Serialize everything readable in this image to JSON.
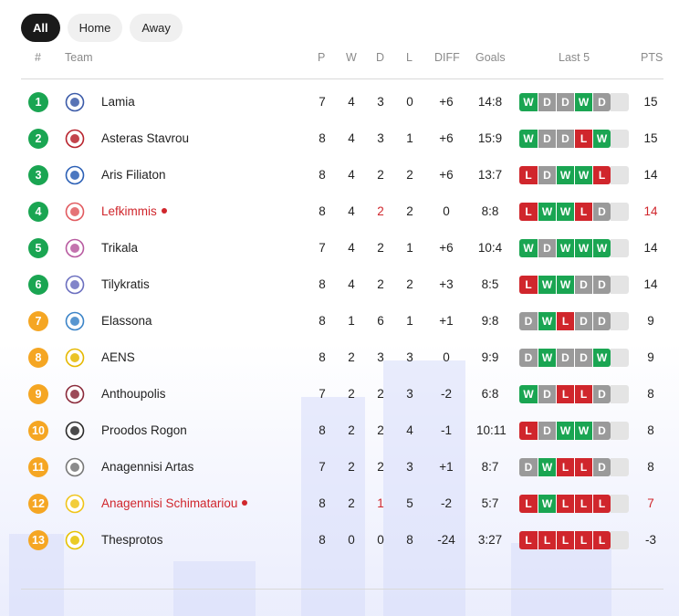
{
  "tabs": [
    {
      "label": "All",
      "active": true
    },
    {
      "label": "Home",
      "active": false
    },
    {
      "label": "Away",
      "active": false
    }
  ],
  "columns": {
    "rank": "#",
    "team": "Team",
    "p": "P",
    "w": "W",
    "d": "D",
    "l": "L",
    "diff": "DIFF",
    "goals": "Goals",
    "last5": "Last 5",
    "pts": "PTS"
  },
  "colors": {
    "green": "#1aa552",
    "orange": "#f5a623",
    "win": "#1aa552",
    "draw": "#9a9a9a",
    "loss": "#d0262c",
    "live": "#d0262c"
  },
  "rows": [
    {
      "rank": "1",
      "zone": "green",
      "team": "Lamia",
      "logo": "lamia-logo-icon",
      "live": false,
      "p": "7",
      "w": "4",
      "d": "3",
      "l": "0",
      "diff": "+6",
      "goals": "14:8",
      "form": [
        "W",
        "D",
        "D",
        "W",
        "D"
      ],
      "pts": "15"
    },
    {
      "rank": "2",
      "zone": "green",
      "team": "Asteras Stavrou",
      "logo": "asteras-stavrou-logo-icon",
      "live": false,
      "p": "8",
      "w": "4",
      "d": "3",
      "l": "1",
      "diff": "+6",
      "goals": "15:9",
      "form": [
        "W",
        "D",
        "D",
        "L",
        "W"
      ],
      "pts": "15"
    },
    {
      "rank": "3",
      "zone": "green",
      "team": "Aris Filiaton",
      "logo": "aris-filiaton-logo-icon",
      "live": false,
      "p": "8",
      "w": "4",
      "d": "2",
      "l": "2",
      "diff": "+6",
      "goals": "13:7",
      "form": [
        "L",
        "D",
        "W",
        "W",
        "L"
      ],
      "pts": "14"
    },
    {
      "rank": "4",
      "zone": "green",
      "team": "Lefkimmis",
      "logo": "lefkimmis-logo-icon",
      "live": true,
      "p": "8",
      "w": "4",
      "d": "2",
      "l": "2",
      "diff": "0",
      "goals": "8:8",
      "form": [
        "L",
        "W",
        "W",
        "L",
        "D"
      ],
      "pts": "14"
    },
    {
      "rank": "5",
      "zone": "green",
      "team": "Trikala",
      "logo": "trikala-logo-icon",
      "live": false,
      "p": "7",
      "w": "4",
      "d": "2",
      "l": "1",
      "diff": "+6",
      "goals": "10:4",
      "form": [
        "W",
        "D",
        "W",
        "W",
        "W"
      ],
      "pts": "14"
    },
    {
      "rank": "6",
      "zone": "green",
      "team": "Tilykratis",
      "logo": "tilykratis-logo-icon",
      "live": false,
      "p": "8",
      "w": "4",
      "d": "2",
      "l": "2",
      "diff": "+3",
      "goals": "8:5",
      "form": [
        "L",
        "W",
        "W",
        "D",
        "D"
      ],
      "pts": "14"
    },
    {
      "rank": "7",
      "zone": "orange",
      "team": "Elassona",
      "logo": "elassona-logo-icon",
      "live": false,
      "p": "8",
      "w": "1",
      "d": "6",
      "l": "1",
      "diff": "+1",
      "goals": "9:8",
      "form": [
        "D",
        "W",
        "L",
        "D",
        "D"
      ],
      "pts": "9"
    },
    {
      "rank": "8",
      "zone": "orange",
      "team": "AENS",
      "logo": "aens-logo-icon",
      "live": false,
      "p": "8",
      "w": "2",
      "d": "3",
      "l": "3",
      "diff": "0",
      "goals": "9:9",
      "form": [
        "D",
        "W",
        "D",
        "D",
        "W"
      ],
      "pts": "9"
    },
    {
      "rank": "9",
      "zone": "orange",
      "team": "Anthoupolis",
      "logo": "anthoupolis-logo-icon",
      "live": false,
      "p": "7",
      "w": "2",
      "d": "2",
      "l": "3",
      "diff": "-2",
      "goals": "6:8",
      "form": [
        "W",
        "D",
        "L",
        "L",
        "D"
      ],
      "pts": "8"
    },
    {
      "rank": "10",
      "zone": "orange",
      "team": "Proodos Rogon",
      "logo": "proodos-rogon-logo-icon",
      "live": false,
      "p": "8",
      "w": "2",
      "d": "2",
      "l": "4",
      "diff": "-1",
      "goals": "10:11",
      "form": [
        "L",
        "D",
        "W",
        "W",
        "D"
      ],
      "pts": "8"
    },
    {
      "rank": "11",
      "zone": "orange",
      "team": "Anagennisi Artas",
      "logo": "anagennisi-artas-logo-icon",
      "live": false,
      "p": "7",
      "w": "2",
      "d": "2",
      "l": "3",
      "diff": "+1",
      "goals": "8:7",
      "form": [
        "D",
        "W",
        "L",
        "L",
        "D"
      ],
      "pts": "8"
    },
    {
      "rank": "12",
      "zone": "orange",
      "team": "Anagennisi Schimatariou",
      "logo": "anagennisi-schimatariou-logo-icon",
      "live": true,
      "p": "8",
      "w": "2",
      "d": "1",
      "l": "5",
      "diff": "-2",
      "goals": "5:7",
      "form": [
        "L",
        "W",
        "L",
        "L",
        "L"
      ],
      "pts": "7"
    },
    {
      "rank": "13",
      "zone": "orange",
      "team": "Thesprotos",
      "logo": "thesprotos-logo-icon",
      "live": false,
      "p": "8",
      "w": "0",
      "d": "0",
      "l": "8",
      "diff": "-24",
      "goals": "3:27",
      "form": [
        "L",
        "L",
        "L",
        "L",
        "L"
      ],
      "pts": "-3"
    }
  ]
}
